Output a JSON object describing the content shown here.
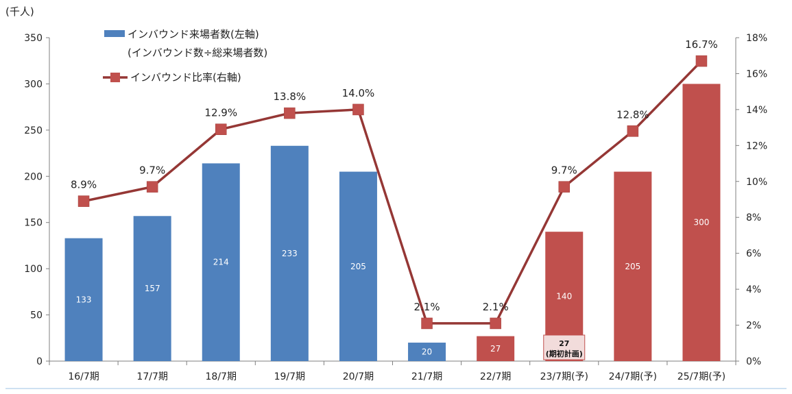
{
  "chart_data": {
    "type": "bar",
    "unit_label": "(千人)",
    "categories": [
      "16/7期",
      "17/7期",
      "18/7期",
      "19/7期",
      "20/7期",
      "21/7期",
      "22/7期",
      "23/7期(予)",
      "24/7期(予)",
      "25/7期(予)"
    ],
    "series": [
      {
        "name": "インバウンド来場者数(左軸)",
        "axis": "left",
        "type": "bar",
        "values": [
          133,
          157,
          214,
          233,
          205,
          20,
          27,
          140,
          205,
          300
        ],
        "colors": [
          "#4f81bd",
          "#4f81bd",
          "#4f81bd",
          "#4f81bd",
          "#4f81bd",
          "#4f81bd",
          "#c0504d",
          "#c0504d",
          "#c0504d",
          "#c0504d"
        ]
      },
      {
        "name": "インバウンド比率(右軸)",
        "axis": "right",
        "type": "line",
        "values": [
          8.9,
          9.7,
          12.9,
          13.8,
          14.0,
          2.1,
          2.1,
          9.7,
          12.8,
          16.7
        ],
        "labels": [
          "8.9%",
          "9.7%",
          "12.9%",
          "13.8%",
          "14.0%",
          "2.1%",
          "2.1%",
          "9.7%",
          "12.8%",
          "16.7%"
        ],
        "color": "#c0504d",
        "line_color": "#953735"
      }
    ],
    "legend_note": "(インバウンド数÷総来場者数)",
    "annotation": {
      "category": "23/7期(予)",
      "value": "27",
      "text": "(期初計画)"
    },
    "left_axis": {
      "min": 0,
      "max": 350,
      "ticks": [
        0,
        50,
        100,
        150,
        200,
        250,
        300,
        350
      ]
    },
    "right_axis": {
      "min": 0,
      "max": 18,
      "ticks": [
        "0%",
        "2%",
        "4%",
        "6%",
        "8%",
        "10%",
        "12%",
        "14%",
        "16%",
        "18%"
      ]
    },
    "grid": false,
    "legend_position": "top-left"
  }
}
